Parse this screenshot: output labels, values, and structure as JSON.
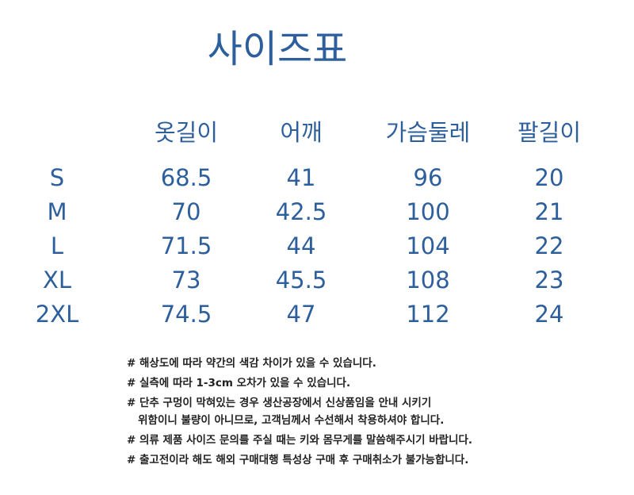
{
  "title": "사이즈표",
  "table": {
    "headers": [
      "옷길이",
      "어깨",
      "가슴둘레",
      "팔길이"
    ],
    "rows": [
      {
        "size": "S",
        "values": [
          "68.5",
          "41",
          "96",
          "20"
        ]
      },
      {
        "size": "M",
        "values": [
          "70",
          "42.5",
          "100",
          "21"
        ]
      },
      {
        "size": "L",
        "values": [
          "71.5",
          "44",
          "104",
          "22"
        ]
      },
      {
        "size": "XL",
        "values": [
          "73",
          "45.5",
          "108",
          "23"
        ]
      },
      {
        "size": "2XL",
        "values": [
          "74.5",
          "47",
          "112",
          "24"
        ]
      }
    ]
  },
  "notes": [
    "# 해상도에 따라 약간의 색감 차이가 있을 수 있습니다.",
    "# 실측에 따라 1-3cm 오차가 있을 수 있습니다.",
    "# 단추 구멍이 막혀있는 경우 생산공장에서 신상품임을 안내 시키기\n   위함이니 불량이 아니므로, 고객님께서 수선해서 착용하셔야 합니다.",
    "# 의류 제품 사이즈 문의를 주실 때는 키와 몸무게를 말씀해주시기 바랍니다.",
    "# 출고전이라 해도 해외 구매대행 특성상 구매 후 구매취소가 불가능합니다."
  ],
  "colors": {
    "accent": "#2d5f9c",
    "text": "#222222"
  }
}
